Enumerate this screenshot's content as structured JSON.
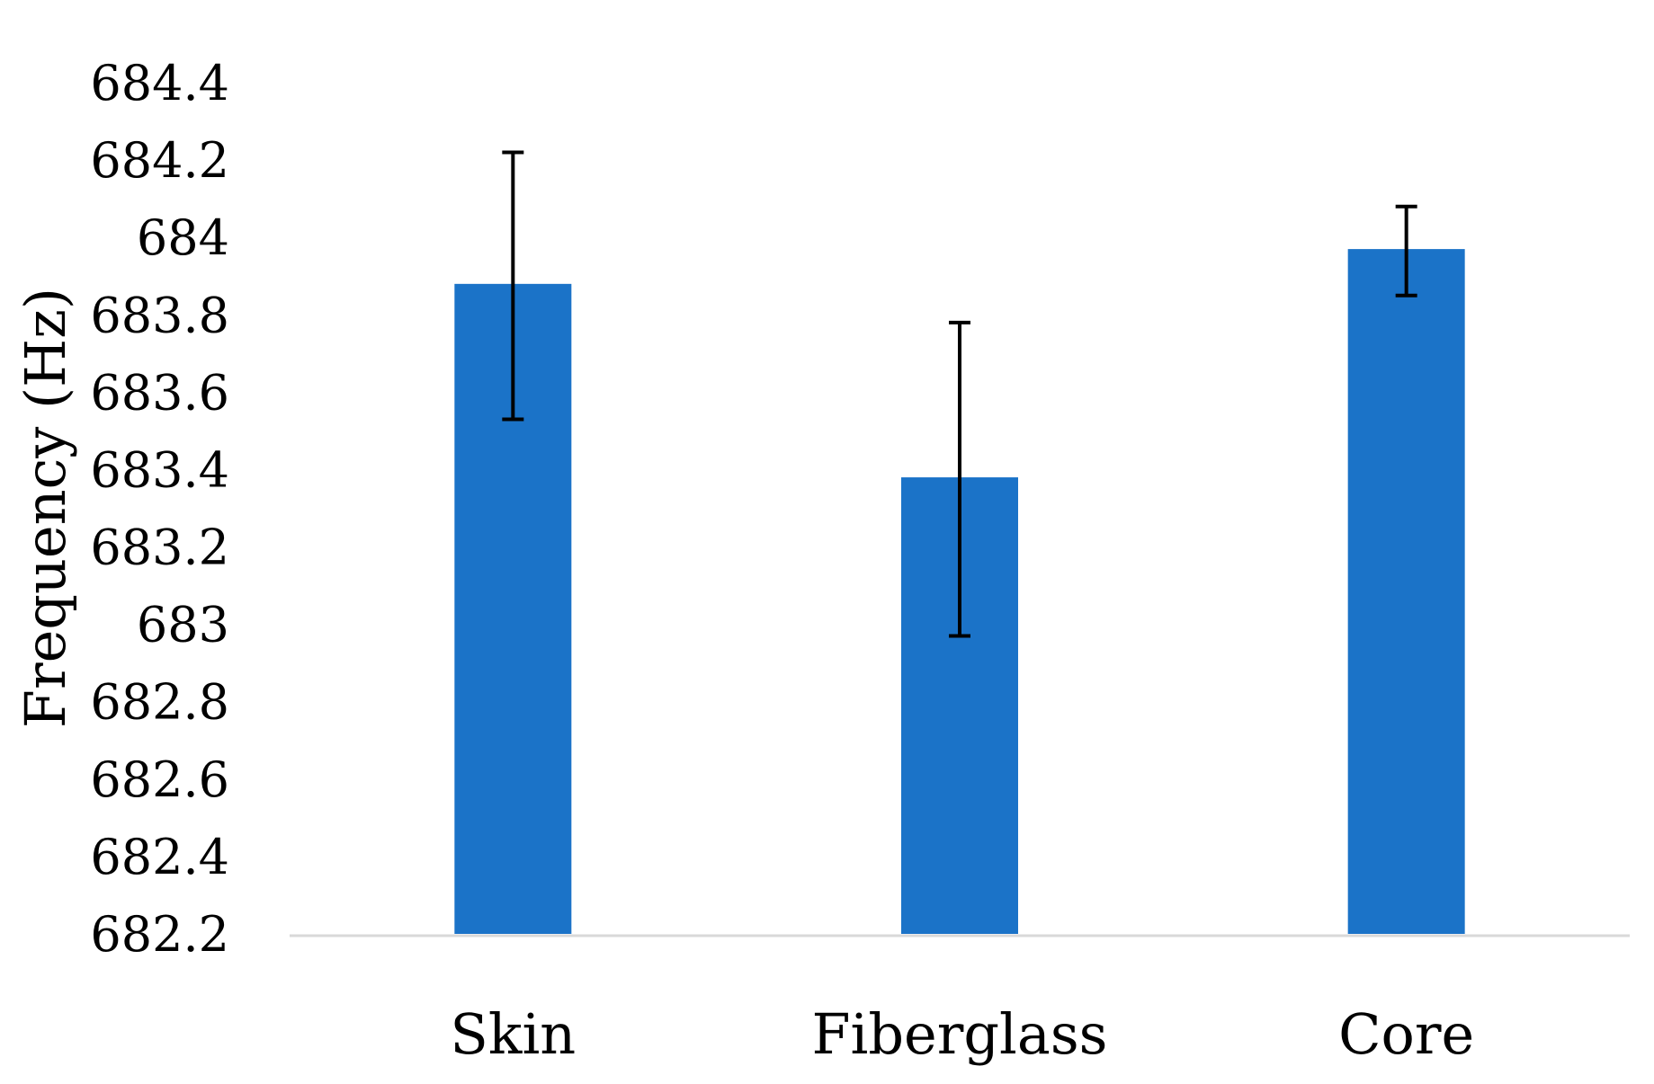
{
  "chart_data": {
    "type": "bar",
    "title": "",
    "xlabel": "",
    "ylabel": "Frequency (Hz)",
    "categories": [
      "Skin",
      "Fiberglass",
      "Core"
    ],
    "values": [
      683.88,
      683.38,
      683.97
    ],
    "error_high": [
      684.22,
      683.78,
      684.08
    ],
    "error_low": [
      683.53,
      682.97,
      683.85
    ],
    "ylim": [
      682.2,
      684.4
    ],
    "yticks": [
      682.2,
      682.4,
      682.6,
      682.8,
      683,
      683.2,
      683.4,
      683.6,
      683.8,
      684,
      684.2,
      684.4
    ],
    "ytick_labels": [
      "682.2",
      "682.4",
      "682.6",
      "682.8",
      "683",
      "683.2",
      "683.4",
      "683.6",
      "683.8",
      "684",
      "684.2",
      "684.4"
    ],
    "bar_color": "#1b73c8",
    "error_bar_color": "#000000",
    "axis_line_color": "#d9d9d9",
    "grid": false,
    "legend": "none"
  }
}
